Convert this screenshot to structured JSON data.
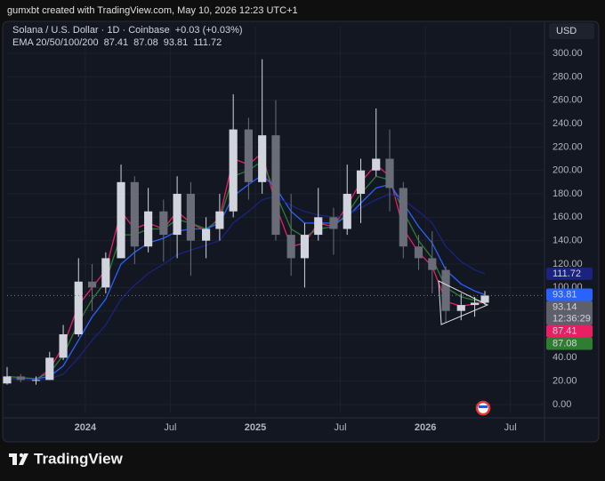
{
  "header": "gumxbt created with TradingView.com, May 10, 2026 12:23 UTC+1",
  "footer": {
    "brand": "TradingView"
  },
  "chart_data": {
    "type": "candlestick",
    "symbol": "Solana / U.S. Dollar · 1D · Coinbase",
    "change": "+0.03 (+0.03%)",
    "indicator": "EMA 20/50/100/200",
    "currency": "USD",
    "countdown": "12:36:29",
    "up_color": "#d1d4dc",
    "down_color": "#6a6d78",
    "x": [
      2023.54,
      2023.62,
      2023.71,
      2023.79,
      2023.87,
      2023.96,
      2024.04,
      2024.12,
      2024.21,
      2024.29,
      2024.37,
      2024.46,
      2024.54,
      2024.62,
      2024.71,
      2024.79,
      2024.87,
      2024.96,
      2025.04,
      2025.12,
      2025.21,
      2025.29,
      2025.37,
      2025.46,
      2025.54,
      2025.62,
      2025.71,
      2025.79,
      2025.87,
      2025.96,
      2026.04,
      2026.12,
      2026.21,
      2026.29,
      2026.35
    ],
    "open": [
      18,
      24,
      21,
      21,
      40,
      60,
      105,
      100,
      125,
      190,
      135,
      165,
      145,
      180,
      140,
      150,
      165,
      235,
      190,
      230,
      145,
      125,
      145,
      160,
      150,
      180,
      200,
      210,
      185,
      135,
      125,
      115,
      80,
      85,
      87
    ],
    "high": [
      32,
      26,
      24,
      45,
      68,
      125,
      120,
      130,
      205,
      195,
      185,
      175,
      195,
      190,
      160,
      180,
      265,
      245,
      295,
      260,
      180,
      155,
      185,
      168,
      205,
      210,
      253,
      235,
      190,
      145,
      148,
      118,
      95,
      92,
      97
    ],
    "low": [
      17,
      19,
      17,
      21,
      38,
      58,
      80,
      95,
      125,
      120,
      130,
      122,
      125,
      110,
      125,
      140,
      160,
      175,
      180,
      140,
      110,
      100,
      140,
      128,
      145,
      155,
      195,
      165,
      125,
      115,
      95,
      70,
      72,
      75,
      85
    ],
    "close": [
      24,
      21,
      21,
      40,
      60,
      105,
      100,
      125,
      190,
      135,
      165,
      145,
      180,
      140,
      150,
      165,
      235,
      190,
      230,
      145,
      125,
      145,
      160,
      150,
      180,
      200,
      210,
      185,
      135,
      125,
      115,
      80,
      85,
      87,
      93.14
    ],
    "series": [
      {
        "color": "#e91e63",
        "values": [
          22,
          22,
          21,
          30,
          50,
          85,
          100,
          115,
          165,
          150,
          155,
          150,
          165,
          155,
          148,
          160,
          210,
          205,
          215,
          170,
          135,
          138,
          155,
          152,
          170,
          190,
          205,
          195,
          150,
          130,
          118,
          88,
          84,
          86,
          87.41
        ]
      },
      {
        "color": "#2e7d32",
        "values": [
          24,
          23,
          22,
          27,
          42,
          70,
          90,
          105,
          145,
          145,
          150,
          150,
          158,
          155,
          150,
          158,
          195,
          200,
          208,
          180,
          150,
          143,
          150,
          152,
          163,
          180,
          195,
          192,
          165,
          140,
          125,
          100,
          92,
          89,
          87.08
        ]
      },
      {
        "color": "#2962ff",
        "values": [
          22,
          22,
          22,
          24,
          33,
          55,
          75,
          90,
          120,
          130,
          138,
          142,
          148,
          150,
          150,
          155,
          178,
          188,
          196,
          185,
          165,
          155,
          155,
          155,
          160,
          172,
          185,
          188,
          172,
          152,
          138,
          115,
          103,
          97,
          93.81
        ]
      },
      {
        "color": "#1a237e",
        "values": [
          22,
          22,
          21,
          22,
          26,
          40,
          55,
          68,
          90,
          102,
          112,
          120,
          128,
          132,
          136,
          140,
          155,
          165,
          175,
          178,
          170,
          165,
          162,
          160,
          162,
          168,
          175,
          180,
          175,
          165,
          155,
          135,
          122,
          115,
          111.72
        ]
      }
    ],
    "xlim": [
      2023.54,
      2026.69
    ],
    "xticks": [
      {
        "value": 2024,
        "label": "2024"
      },
      {
        "value": 2024.5,
        "label": "Jul"
      },
      {
        "value": 2025,
        "label": "2025"
      },
      {
        "value": 2025.5,
        "label": "Jul"
      },
      {
        "value": 2026,
        "label": "2026"
      },
      {
        "value": 2026.5,
        "label": "Jul"
      }
    ],
    "ylim": [
      -7.6,
      322.8
    ],
    "yticks": [
      {
        "value": 0,
        "label": "0.00"
      },
      {
        "value": 20,
        "label": "20.00"
      },
      {
        "value": 40,
        "label": "40.00"
      },
      {
        "value": 60,
        "label": "60.00"
      },
      {
        "value": 80,
        "label": "80.00"
      },
      {
        "value": 100,
        "label": "100.00"
      },
      {
        "value": 120,
        "label": "120.00"
      },
      {
        "value": 140,
        "label": "140.00"
      },
      {
        "value": 160,
        "label": "160.00"
      },
      {
        "value": 180,
        "label": "180.00"
      },
      {
        "value": 200,
        "label": "200.00"
      },
      {
        "value": 220,
        "label": "220.00"
      },
      {
        "value": 240,
        "label": "240.00"
      },
      {
        "value": 260,
        "label": "260.00"
      },
      {
        "value": 280,
        "label": "280.00"
      },
      {
        "value": 300,
        "label": "300.00"
      }
    ],
    "grid": true
  }
}
